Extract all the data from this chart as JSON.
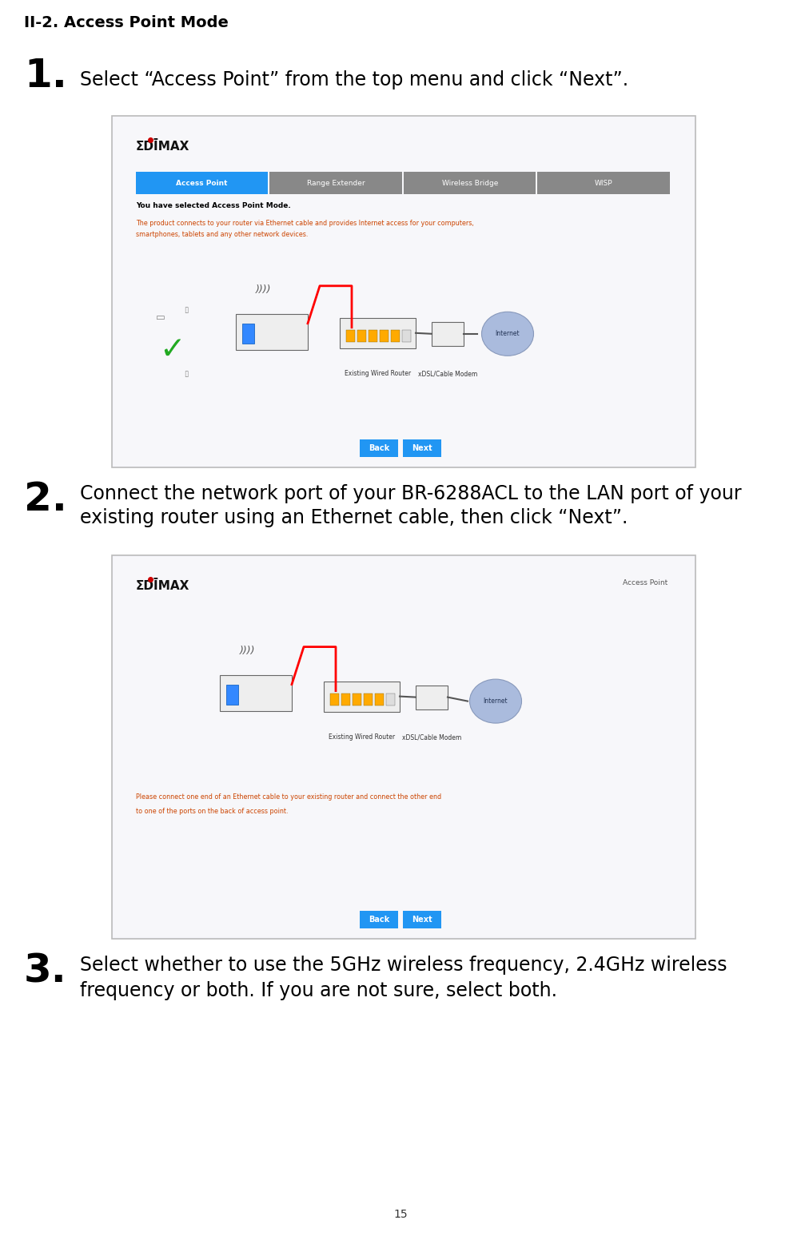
{
  "bg_color": "#ffffff",
  "page_number": "15",
  "section_title": "II-2. Access Point Mode",
  "step1_number": "1.",
  "step1_text": "Select “Access Point” from the top menu and click “Next”.",
  "step2_number": "2.",
  "step2_text_line1": "Connect the network port of your BR-6288ACL to the LAN port of your",
  "step2_text_line2": "existing router using an Ethernet cable, then click “Next”.",
  "step3_number": "3.",
  "step3_text_line1": "Select whether to use the 5GHz wireless frequency, 2.4GHz wireless",
  "step3_text_line2": "frequency or both. If you are not sure, select both.",
  "screenshot_bg": "#f2f2f8",
  "screenshot_border": "#bbbbbb",
  "tab_active_color": "#2196F3",
  "tab_inactive_color": "#888888",
  "tabs": [
    "Access Point",
    "Range Extender",
    "Wireless Bridge",
    "WISP"
  ],
  "button_color": "#2196F3",
  "body_text_color": "#cc4400",
  "bold_text_color": "#000000",
  "instr_text_color": "#cc4400"
}
